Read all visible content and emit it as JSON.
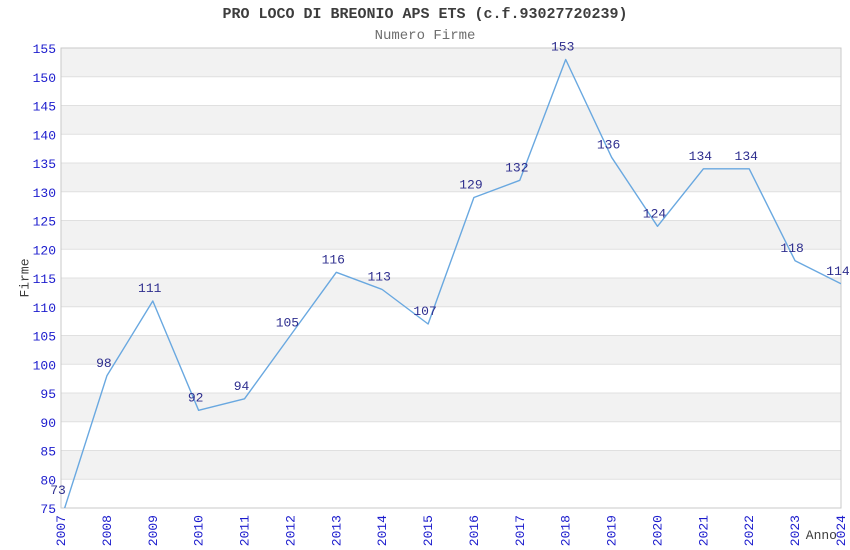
{
  "chart_data": {
    "type": "line",
    "title": "PRO LOCO DI BREONIO APS ETS (c.f.93027720239)",
    "subtitle": "Numero Firme",
    "xlabel": "Anno",
    "ylabel": "Firme",
    "categories": [
      "2007",
      "2008",
      "2009",
      "2010",
      "2011",
      "2012",
      "2013",
      "2014",
      "2015",
      "2016",
      "2017",
      "2018",
      "2019",
      "2020",
      "2021",
      "2022",
      "2023",
      "2024"
    ],
    "values": [
      73,
      98,
      111,
      92,
      94,
      105,
      116,
      113,
      107,
      129,
      132,
      153,
      136,
      124,
      134,
      134,
      118,
      114
    ],
    "ylim": [
      75,
      155
    ],
    "ytick_step": 5,
    "grid": true,
    "legend": "none",
    "point_labels_shown": true,
    "colors": {
      "series_line": "#69a8e0",
      "tick_label": "#1c1ccd",
      "value_label": "#2e2e8e",
      "band_fill": "#f2f2f2",
      "grid_line": "#e0e0e0",
      "plot_border": "#c9c9c9",
      "title_text": "#3d3d3d",
      "subtitle_text": "#6e6e6e"
    }
  }
}
